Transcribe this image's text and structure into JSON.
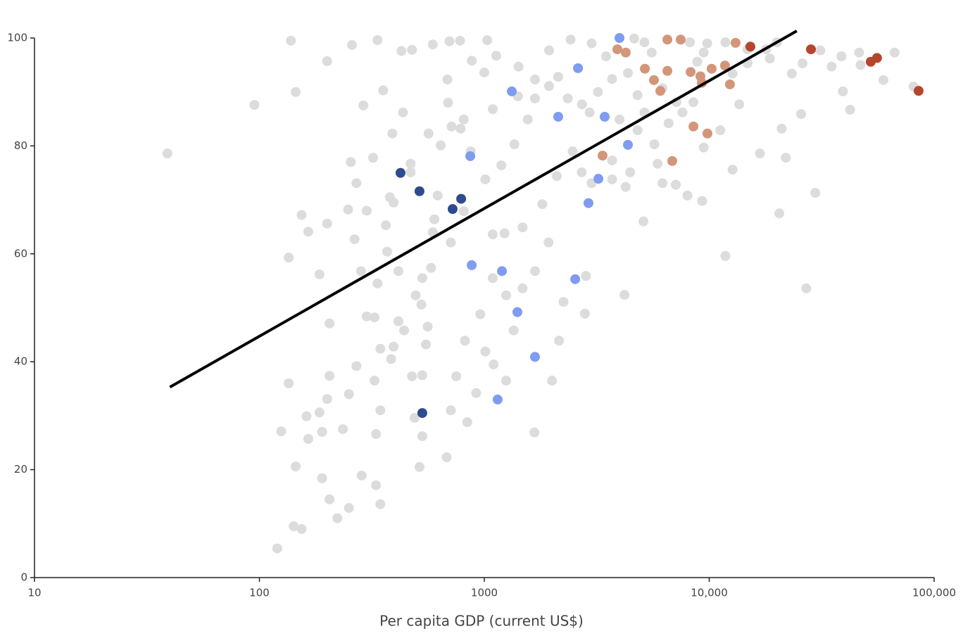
{
  "chart_data": {
    "type": "scatter",
    "x_label": "Per capita GDP (current US$)",
    "xscale": "log",
    "xlim": [
      10,
      100000
    ],
    "ylim": [
      0,
      100
    ],
    "xticks": [
      10,
      100,
      1000,
      {
        "value": 10000,
        "label": "10,000"
      },
      {
        "value": 100000,
        "label": "100,000"
      }
    ],
    "yticks": [
      0,
      20,
      40,
      60,
      80,
      100
    ],
    "grid": false,
    "series": [
      {
        "color": "#dcdcdc",
        "x": [
          39,
          95,
          138,
          145,
          200,
          258,
          335,
          135,
          154,
          165,
          135,
          125,
          120,
          142,
          154,
          145,
          162,
          165,
          190,
          185,
          190,
          205,
          222,
          250,
          200,
          205,
          200,
          248,
          265,
          283,
          290,
          320,
          355,
          390,
          435,
          428,
          477,
          395,
          365,
          370,
          415,
          335,
          325,
          345,
          325,
          345,
          330,
          330,
          345,
          285,
          395,
          415,
          477,
          490,
          515,
          530,
          530,
          550,
          560,
          525,
          530,
          580,
          600,
          620,
          640,
          715,
          785,
          690,
          685,
          590,
          700,
          780,
          880,
          1000,
          1030,
          1130,
          1420,
          1680,
          1940,
          2130,
          2350,
          2720,
          2940,
          3200,
          3700,
          4350,
          4800,
          5150,
          5550,
          6200,
          7150,
          8850,
          11800,
          14800,
          18600,
          23300,
          31200,
          38700,
          47100,
          59500,
          66700,
          81000,
          39300,
          42300,
          25600,
          21000,
          21900,
          20500,
          29600,
          27000,
          11800,
          12700,
          16800,
          11200,
          9300,
          8000,
          7100,
          5900,
          5100,
          4200,
          4250,
          3700,
          2830,
          2800,
          2150,
          2000,
          1670,
          2250,
          1930,
          1680,
          1480,
          1250,
          1350,
          1250,
          1100,
          1010,
          920,
          840,
          710,
          680,
          750,
          820,
          960,
          1090,
          1230,
          1480,
          1810,
          2100,
          2470,
          2710,
          1090,
          1190,
          1360,
          1560,
          1680,
          1940,
          1010,
          870,
          810,
          710,
          590,
          495,
          440,
          385,
          300,
          270,
          250,
          235,
          205,
          185,
          470,
          380,
          300,
          270,
          255,
          470,
          565,
          810,
          1090,
          1410,
          2420,
          3000,
          3480,
          4640,
          5150,
          8200,
          9450,
          9800,
          12700,
          14800,
          17900,
          20000,
          26000,
          35000,
          46400,
          6600,
          7600,
          8500,
          13600,
          9450,
          5700,
          4800,
          3990,
          4450,
          6200,
          3700,
          3000
        ],
        "values": [
          78.6,
          87.6,
          99.5,
          90,
          95.7,
          98.7,
          99.6,
          59.3,
          67.2,
          64.1,
          36,
          27.1,
          5.4,
          9.5,
          9,
          20.6,
          29.9,
          25.7,
          27,
          30.6,
          18.4,
          14.5,
          11,
          12.9,
          33.1,
          37.4,
          65.6,
          68.2,
          62.7,
          56.8,
          87.5,
          77.8,
          90.3,
          82.3,
          86.2,
          97.6,
          97.8,
          69.5,
          65.3,
          60.4,
          56.8,
          54.5,
          48.2,
          42.4,
          36.5,
          31,
          26.6,
          17.1,
          13.6,
          18.9,
          42.8,
          47.5,
          37.3,
          29.6,
          20.5,
          26.2,
          37.5,
          43.2,
          46.5,
          50.6,
          55.5,
          57.4,
          66.4,
          70.8,
          80.1,
          83.6,
          83.2,
          88,
          92.3,
          98.8,
          99.4,
          99.5,
          95.8,
          93.6,
          99.6,
          96.7,
          94.7,
          92.3,
          97.7,
          92.8,
          88.8,
          87.7,
          86.2,
          90,
          92.4,
          93.5,
          89.4,
          86.2,
          97.3,
          90.7,
          88.1,
          95.6,
          99.2,
          97.9,
          96.2,
          93.4,
          97.7,
          96.6,
          95,
          92.2,
          97.3,
          91,
          90.1,
          86.7,
          85.9,
          83.2,
          77.8,
          67.5,
          71.3,
          53.6,
          59.6,
          75.6,
          78.6,
          82.9,
          69.8,
          70.8,
          72.8,
          76.7,
          66,
          52.4,
          72.4,
          77.3,
          55.9,
          48.9,
          43.9,
          36.5,
          26.9,
          51.1,
          62.1,
          56.8,
          53.6,
          52.3,
          45.8,
          36.5,
          39.5,
          41.9,
          34.2,
          28.8,
          31,
          22.3,
          37.3,
          43.9,
          48.8,
          55.5,
          63.8,
          64.9,
          69.2,
          74.4,
          79,
          75.1,
          63.6,
          76.4,
          80.3,
          84.9,
          88.8,
          91.1,
          73.8,
          79,
          67.9,
          62.1,
          64,
          52.3,
          45.8,
          40.5,
          48.4,
          39.2,
          34,
          27.5,
          47.1,
          56.2,
          75.1,
          70.5,
          68,
          73.1,
          77,
          76.7,
          82.3,
          84.9,
          86.8,
          89.2,
          99.7,
          99,
          96.6,
          99.9,
          99.2,
          99.2,
          97.3,
          99,
          93.4,
          95.3,
          97.9,
          99.2,
          95.3,
          94.7,
          97.3,
          84.2,
          86.2,
          88.1,
          87.7,
          79.7,
          80.3,
          82.9,
          84.9,
          75.1,
          73.1,
          73.8,
          73.1
        ]
      },
      {
        "color": "#2f4b8f",
        "x": [
          424,
          515,
          723,
          789,
          530
        ],
        "values": [
          75.0,
          71.6,
          68.3,
          70.2,
          30.5
        ]
      },
      {
        "color": "#7f9cf0",
        "x": [
          3990,
          2610,
          1325,
          2131,
          3430,
          866,
          4350,
          3215,
          2905,
          879,
          1198,
          2535,
          1403,
          1680,
          1146
        ],
        "values": [
          100.0,
          94.4,
          90.1,
          85.4,
          85.4,
          78.1,
          80.2,
          73.9,
          69.4,
          57.9,
          56.8,
          55.3,
          49.2,
          40.9,
          33.0
        ]
      },
      {
        "color": "#d4967a",
        "x": [
          3905,
          4255,
          6515,
          7465,
          5175,
          5680,
          6060,
          6515,
          8265,
          9140,
          10250,
          11750,
          13100,
          9270,
          12360,
          8510,
          9820,
          3355,
          6850
        ],
        "values": [
          97.9,
          97.3,
          99.7,
          99.7,
          94.3,
          92.2,
          90.2,
          93.9,
          93.7,
          92.9,
          94.3,
          94.9,
          99.1,
          91.7,
          91.4,
          83.6,
          82.3,
          78.2,
          77.2
        ]
      },
      {
        "color": "#b5462e",
        "x": [
          15240,
          28330,
          52250,
          55720,
          85310
        ],
        "values": [
          98.4,
          97.9,
          95.6,
          96.3,
          90.2
        ]
      }
    ],
    "trendline": {
      "type": "line",
      "color": "#000000",
      "x": [
        40,
        24500
      ],
      "values": [
        35.3,
        101.3
      ]
    }
  }
}
